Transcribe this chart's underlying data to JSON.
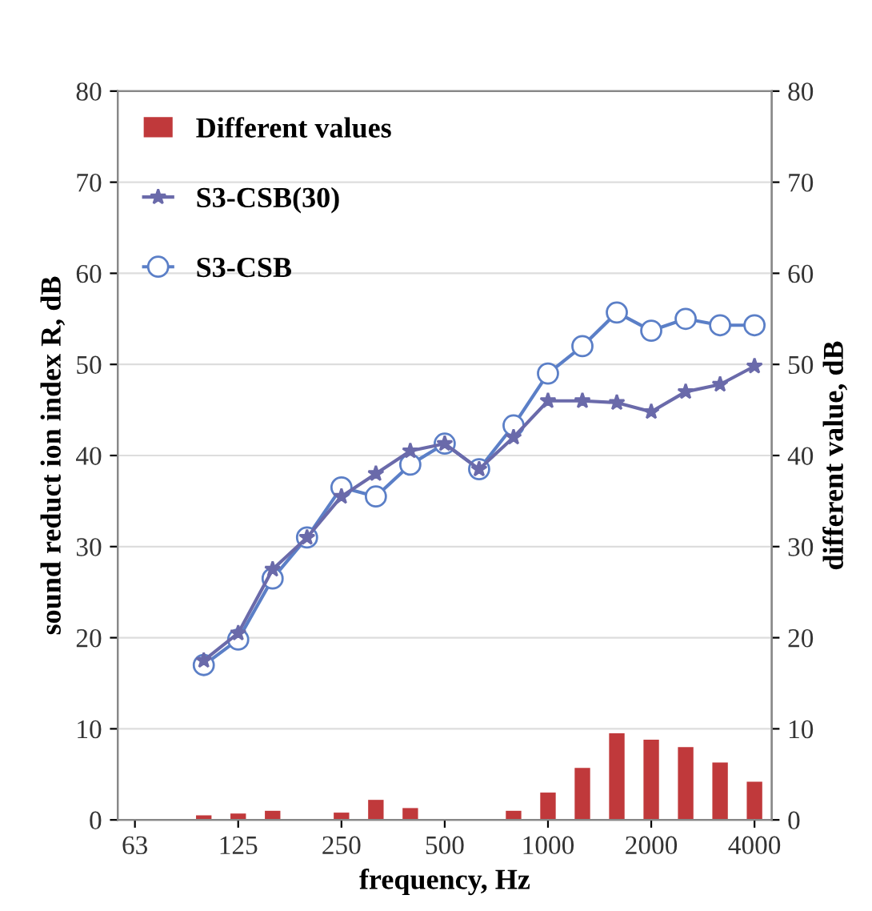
{
  "chart_data": {
    "type": "line",
    "xlabel": "frequency, Hz",
    "ylabel": "sound reduct ion index R, dB",
    "y2label": "different value, dB",
    "categories": [
      "63",
      null,
      null,
      "125",
      null,
      null,
      "250",
      null,
      null,
      "500",
      null,
      null,
      "1000",
      null,
      null,
      "2000",
      null,
      null,
      "4000"
    ],
    "series": [
      {
        "name": "Different values",
        "type": "bar",
        "color": "#c0393b",
        "values": [
          0,
          0,
          0.5,
          0.7,
          1,
          0.1,
          0.8,
          2.2,
          1.3,
          0,
          0.1,
          1,
          3,
          5.7,
          9.5,
          8.8,
          8,
          6.3,
          4.2
        ]
      },
      {
        "name": "S3-CSB(30)",
        "color": "#6a6aaa",
        "marker": "star",
        "values": [
          null,
          null,
          17.5,
          20.5,
          27.5,
          31,
          35.5,
          38,
          40.5,
          41.3,
          38.5,
          42,
          46,
          46,
          45.8,
          44.8,
          47,
          47.8,
          49.8
        ]
      },
      {
        "name": "S3-CSB",
        "color": "#5b7fc7",
        "marker": "circle",
        "values": [
          null,
          null,
          17,
          19.8,
          26.5,
          31,
          36.5,
          35.5,
          39,
          41.3,
          38.5,
          43.3,
          49,
          52,
          55.7,
          53.7,
          55,
          54.3,
          54.3
        ]
      }
    ],
    "ylim": [
      0,
      80
    ],
    "yticks": [
      0,
      10,
      20,
      30,
      40,
      50,
      60,
      70,
      80
    ],
    "y2lim": [
      0,
      80
    ],
    "y2ticks": [
      0,
      10,
      20,
      30,
      40,
      50,
      60,
      70,
      80
    ],
    "grid": "y",
    "legend": "top left"
  }
}
